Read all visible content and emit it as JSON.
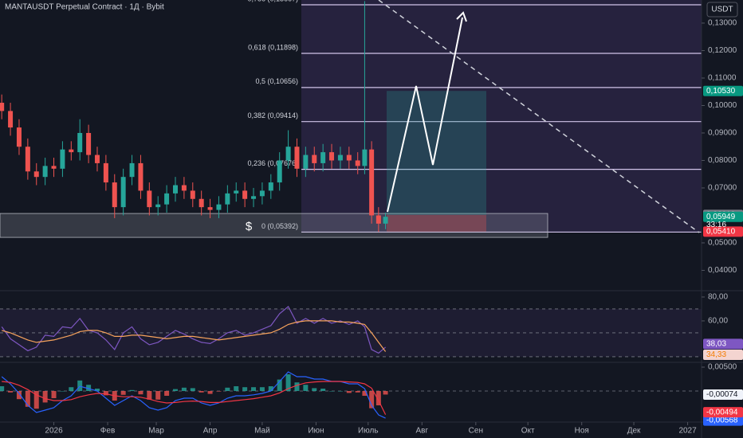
{
  "chart_data": [
    {
      "type": "candlestick",
      "title": "MANTAUSDT Perpetual Contract · 1Д · Bybit",
      "currency": "USDT",
      "x": [
        -30,
        -25,
        -20,
        -15,
        -10,
        -5,
        0,
        5,
        10,
        15,
        20,
        25,
        30,
        35,
        40,
        45,
        50,
        55,
        60,
        65,
        70,
        75,
        80,
        85,
        90,
        95,
        100,
        105,
        110,
        115,
        120,
        125,
        130,
        135,
        140,
        145,
        150,
        155,
        160,
        165,
        170,
        175,
        179,
        183,
        187,
        191
      ],
      "open": [
        0.101,
        0.098,
        0.092,
        0.085,
        0.076,
        0.074,
        0.078,
        0.077,
        0.084,
        0.083,
        0.09,
        0.082,
        0.079,
        0.072,
        0.063,
        0.074,
        0.079,
        0.069,
        0.063,
        0.064,
        0.068,
        0.071,
        0.069,
        0.066,
        0.063,
        0.062,
        0.064,
        0.068,
        0.069,
        0.066,
        0.067,
        0.069,
        0.072,
        0.08,
        0.085,
        0.077,
        0.082,
        0.079,
        0.083,
        0.08,
        0.082,
        0.08,
        0.078,
        0.084,
        0.06,
        0.057
      ],
      "high": [
        0.104,
        0.101,
        0.095,
        0.088,
        0.079,
        0.081,
        0.081,
        0.087,
        0.087,
        0.095,
        0.093,
        0.085,
        0.082,
        0.075,
        0.077,
        0.082,
        0.082,
        0.072,
        0.067,
        0.071,
        0.074,
        0.074,
        0.072,
        0.069,
        0.066,
        0.067,
        0.071,
        0.072,
        0.072,
        0.07,
        0.072,
        0.075,
        0.083,
        0.091,
        0.088,
        0.085,
        0.085,
        0.086,
        0.086,
        0.085,
        0.085,
        0.083,
        0.138,
        0.087,
        0.063,
        0.061
      ],
      "low": [
        0.095,
        0.089,
        0.082,
        0.073,
        0.071,
        0.071,
        0.074,
        0.074,
        0.08,
        0.08,
        0.079,
        0.076,
        0.069,
        0.059,
        0.06,
        0.071,
        0.066,
        0.06,
        0.06,
        0.061,
        0.065,
        0.066,
        0.063,
        0.06,
        0.059,
        0.059,
        0.061,
        0.065,
        0.063,
        0.063,
        0.064,
        0.066,
        0.069,
        0.077,
        0.074,
        0.074,
        0.076,
        0.076,
        0.077,
        0.077,
        0.077,
        0.075,
        0.075,
        0.057,
        0.054,
        0.055
      ],
      "close": [
        0.098,
        0.092,
        0.085,
        0.076,
        0.074,
        0.078,
        0.077,
        0.084,
        0.083,
        0.09,
        0.082,
        0.079,
        0.072,
        0.063,
        0.074,
        0.079,
        0.069,
        0.063,
        0.064,
        0.068,
        0.071,
        0.069,
        0.066,
        0.063,
        0.062,
        0.064,
        0.068,
        0.069,
        0.066,
        0.067,
        0.069,
        0.072,
        0.08,
        0.085,
        0.077,
        0.082,
        0.079,
        0.083,
        0.08,
        0.082,
        0.08,
        0.078,
        0.084,
        0.06,
        0.057,
        0.0595
      ],
      "up_color": "#26a69a",
      "down_color": "#ef5350",
      "xlim": [
        -31,
        373
      ],
      "xticks": [
        {
          "value": 0,
          "label": "2026"
        },
        {
          "value": 31,
          "label": "Фев"
        },
        {
          "value": 59,
          "label": "Мар"
        },
        {
          "value": 90,
          "label": "Апр"
        },
        {
          "value": 120,
          "label": "Май"
        },
        {
          "value": 151,
          "label": "Июн"
        },
        {
          "value": 181,
          "label": "Июль"
        },
        {
          "value": 212,
          "label": "Авг"
        },
        {
          "value": 243,
          "label": "Сен"
        },
        {
          "value": 273,
          "label": "Окт"
        },
        {
          "value": 304,
          "label": "Ноя"
        },
        {
          "value": 334,
          "label": "Дек"
        },
        {
          "value": 365,
          "label": "2027"
        }
      ],
      "ylim": [
        0.0326,
        0.1384
      ],
      "yticks": [
        {
          "value": 0.04,
          "label": "0,04000"
        },
        {
          "value": 0.05,
          "label": "0,05000"
        },
        {
          "value": 0.07,
          "label": "0,07000"
        },
        {
          "value": 0.08,
          "label": "0,08000"
        },
        {
          "value": 0.09,
          "label": "0,09000"
        },
        {
          "value": 0.1,
          "label": "0,10000"
        },
        {
          "value": 0.11,
          "label": "0,11000"
        },
        {
          "value": 0.12,
          "label": "0,12000"
        },
        {
          "value": 0.13,
          "label": "0,13000"
        }
      ],
      "fib_levels": [
        {
          "value": 0.13667,
          "label": "0,786 (0,13667)"
        },
        {
          "value": 0.11898,
          "label": "0,618 (0,11898)"
        },
        {
          "value": 0.10656,
          "label": "0,5 (0,10656)"
        },
        {
          "value": 0.09414,
          "label": "0,382 (0,09414)"
        },
        {
          "value": 0.07676,
          "label": "0,236 (0,07676)"
        },
        {
          "value": 0.05392,
          "label": "0 (0,05392)"
        }
      ],
      "fib_color": "#d1c4e9",
      "position": {
        "target": 0.1053,
        "entry": 0.06018,
        "stop": 0.0541
      },
      "zone": [
        0.052,
        0.0607
      ],
      "annotation": "$",
      "price_labels": [
        {
          "value": 0.1053,
          "label": "0,10530",
          "color": "#089981"
        },
        {
          "value": 0.06018,
          "label": "0,06018",
          "color": "#787b86"
        },
        {
          "value": 0.05949,
          "label": "0,05949",
          "color": "#089981"
        },
        {
          "value": 0.0541,
          "label": "0,05410",
          "color": "#f23645"
        }
      ],
      "countdown": "33:16"
    },
    {
      "type": "line",
      "ylim": [
        25.3,
        85.3
      ],
      "yticks": [
        {
          "value": 80,
          "label": "80,00"
        },
        {
          "value": 60,
          "label": "60,00"
        }
      ],
      "levels": [
        70,
        50,
        30
      ],
      "series": [
        {
          "color": "#7e57c2",
          "label_text": "#ffffff",
          "last_label": "38,03",
          "values": [
            55,
            45,
            40,
            35,
            38,
            48,
            47,
            55,
            54,
            62,
            52,
            50,
            44,
            36,
            50,
            55,
            45,
            40,
            42,
            47,
            52,
            49,
            45,
            42,
            41,
            45,
            50,
            52,
            48,
            50,
            53,
            56,
            66,
            72,
            58,
            62,
            58,
            62,
            58,
            60,
            57,
            60,
            55,
            36,
            33,
            38.03
          ]
        },
        {
          "color": "#f7a35c",
          "label_text": "#f57c00",
          "last_label": "34,33",
          "values": [
            52,
            50,
            47,
            44,
            42,
            43,
            44,
            46,
            48,
            51,
            52,
            52,
            50,
            47,
            47,
            48,
            48,
            47,
            46,
            45,
            46,
            47,
            47,
            46,
            45,
            44,
            45,
            46,
            47,
            48,
            49,
            50,
            53,
            57,
            59,
            60,
            60,
            60,
            60,
            59,
            59,
            58,
            57,
            50,
            42,
            34.33
          ]
        }
      ]
    },
    {
      "type": "macd",
      "ylim": [
        -0.0065,
        0.006
      ],
      "yticks": [
        {
          "value": 0.005,
          "label": "0,00500"
        }
      ],
      "histogram": {
        "up_color": "#26a69a",
        "down_color": "#ef5350",
        "last_label": "-0,00074",
        "values": [
          0.001,
          -0.0003,
          -0.0017,
          -0.0033,
          -0.0037,
          -0.0024,
          -0.0015,
          0,
          0.0008,
          0.0022,
          0.0013,
          0.0005,
          -0.0009,
          -0.002,
          -0.0008,
          0.0002,
          -0.0007,
          -0.0018,
          -0.0018,
          -0.001,
          0.0004,
          0.0007,
          0.0006,
          -0.0003,
          -0.0006,
          -0.0001,
          0.0007,
          0.001,
          0.0008,
          0.0008,
          0.0008,
          0.001,
          0.0024,
          0.0035,
          0.0018,
          0.0013,
          0.0006,
          0.0005,
          0,
          0,
          -0.0004,
          -0.0003,
          -0.001,
          -0.0036,
          -0.003,
          -0.00074
        ]
      },
      "series": [
        {
          "color": "#2962ff",
          "last_label": "-0,00568",
          "values": [
            0.003,
            0.0015,
            -0.0005,
            -0.003,
            -0.0045,
            -0.004,
            -0.0035,
            -0.002,
            -0.001,
            0.001,
            0.0005,
            0,
            -0.0015,
            -0.003,
            -0.002,
            -0.001,
            -0.002,
            -0.0035,
            -0.004,
            -0.0035,
            -0.002,
            -0.0015,
            -0.0015,
            -0.0025,
            -0.003,
            -0.0025,
            -0.0015,
            -0.001,
            -0.001,
            -0.0008,
            -0.0005,
            0,
            0.002,
            0.004,
            0.003,
            0.003,
            0.0025,
            0.0025,
            0.002,
            0.002,
            0.0015,
            0.0015,
            0.0005,
            -0.003,
            -0.005,
            -0.00568
          ]
        },
        {
          "color": "#f23645",
          "last_label": "-0,00494",
          "values": [
            0.002,
            0.0018,
            0.0012,
            0.0003,
            -0.0008,
            -0.0016,
            -0.002,
            -0.002,
            -0.0018,
            -0.0012,
            -0.0008,
            -0.0005,
            -0.0006,
            -0.001,
            -0.0012,
            -0.0012,
            -0.0013,
            -0.0017,
            -0.0022,
            -0.0025,
            -0.0024,
            -0.0022,
            -0.0021,
            -0.0022,
            -0.0024,
            -0.0024,
            -0.0022,
            -0.002,
            -0.0018,
            -0.0016,
            -0.0013,
            -0.001,
            -0.0004,
            0.0005,
            0.0012,
            0.0017,
            0.0019,
            0.002,
            0.002,
            0.002,
            0.0019,
            0.0018,
            0.0015,
            0.0006,
            -0.002,
            -0.00494
          ]
        }
      ]
    }
  ]
}
